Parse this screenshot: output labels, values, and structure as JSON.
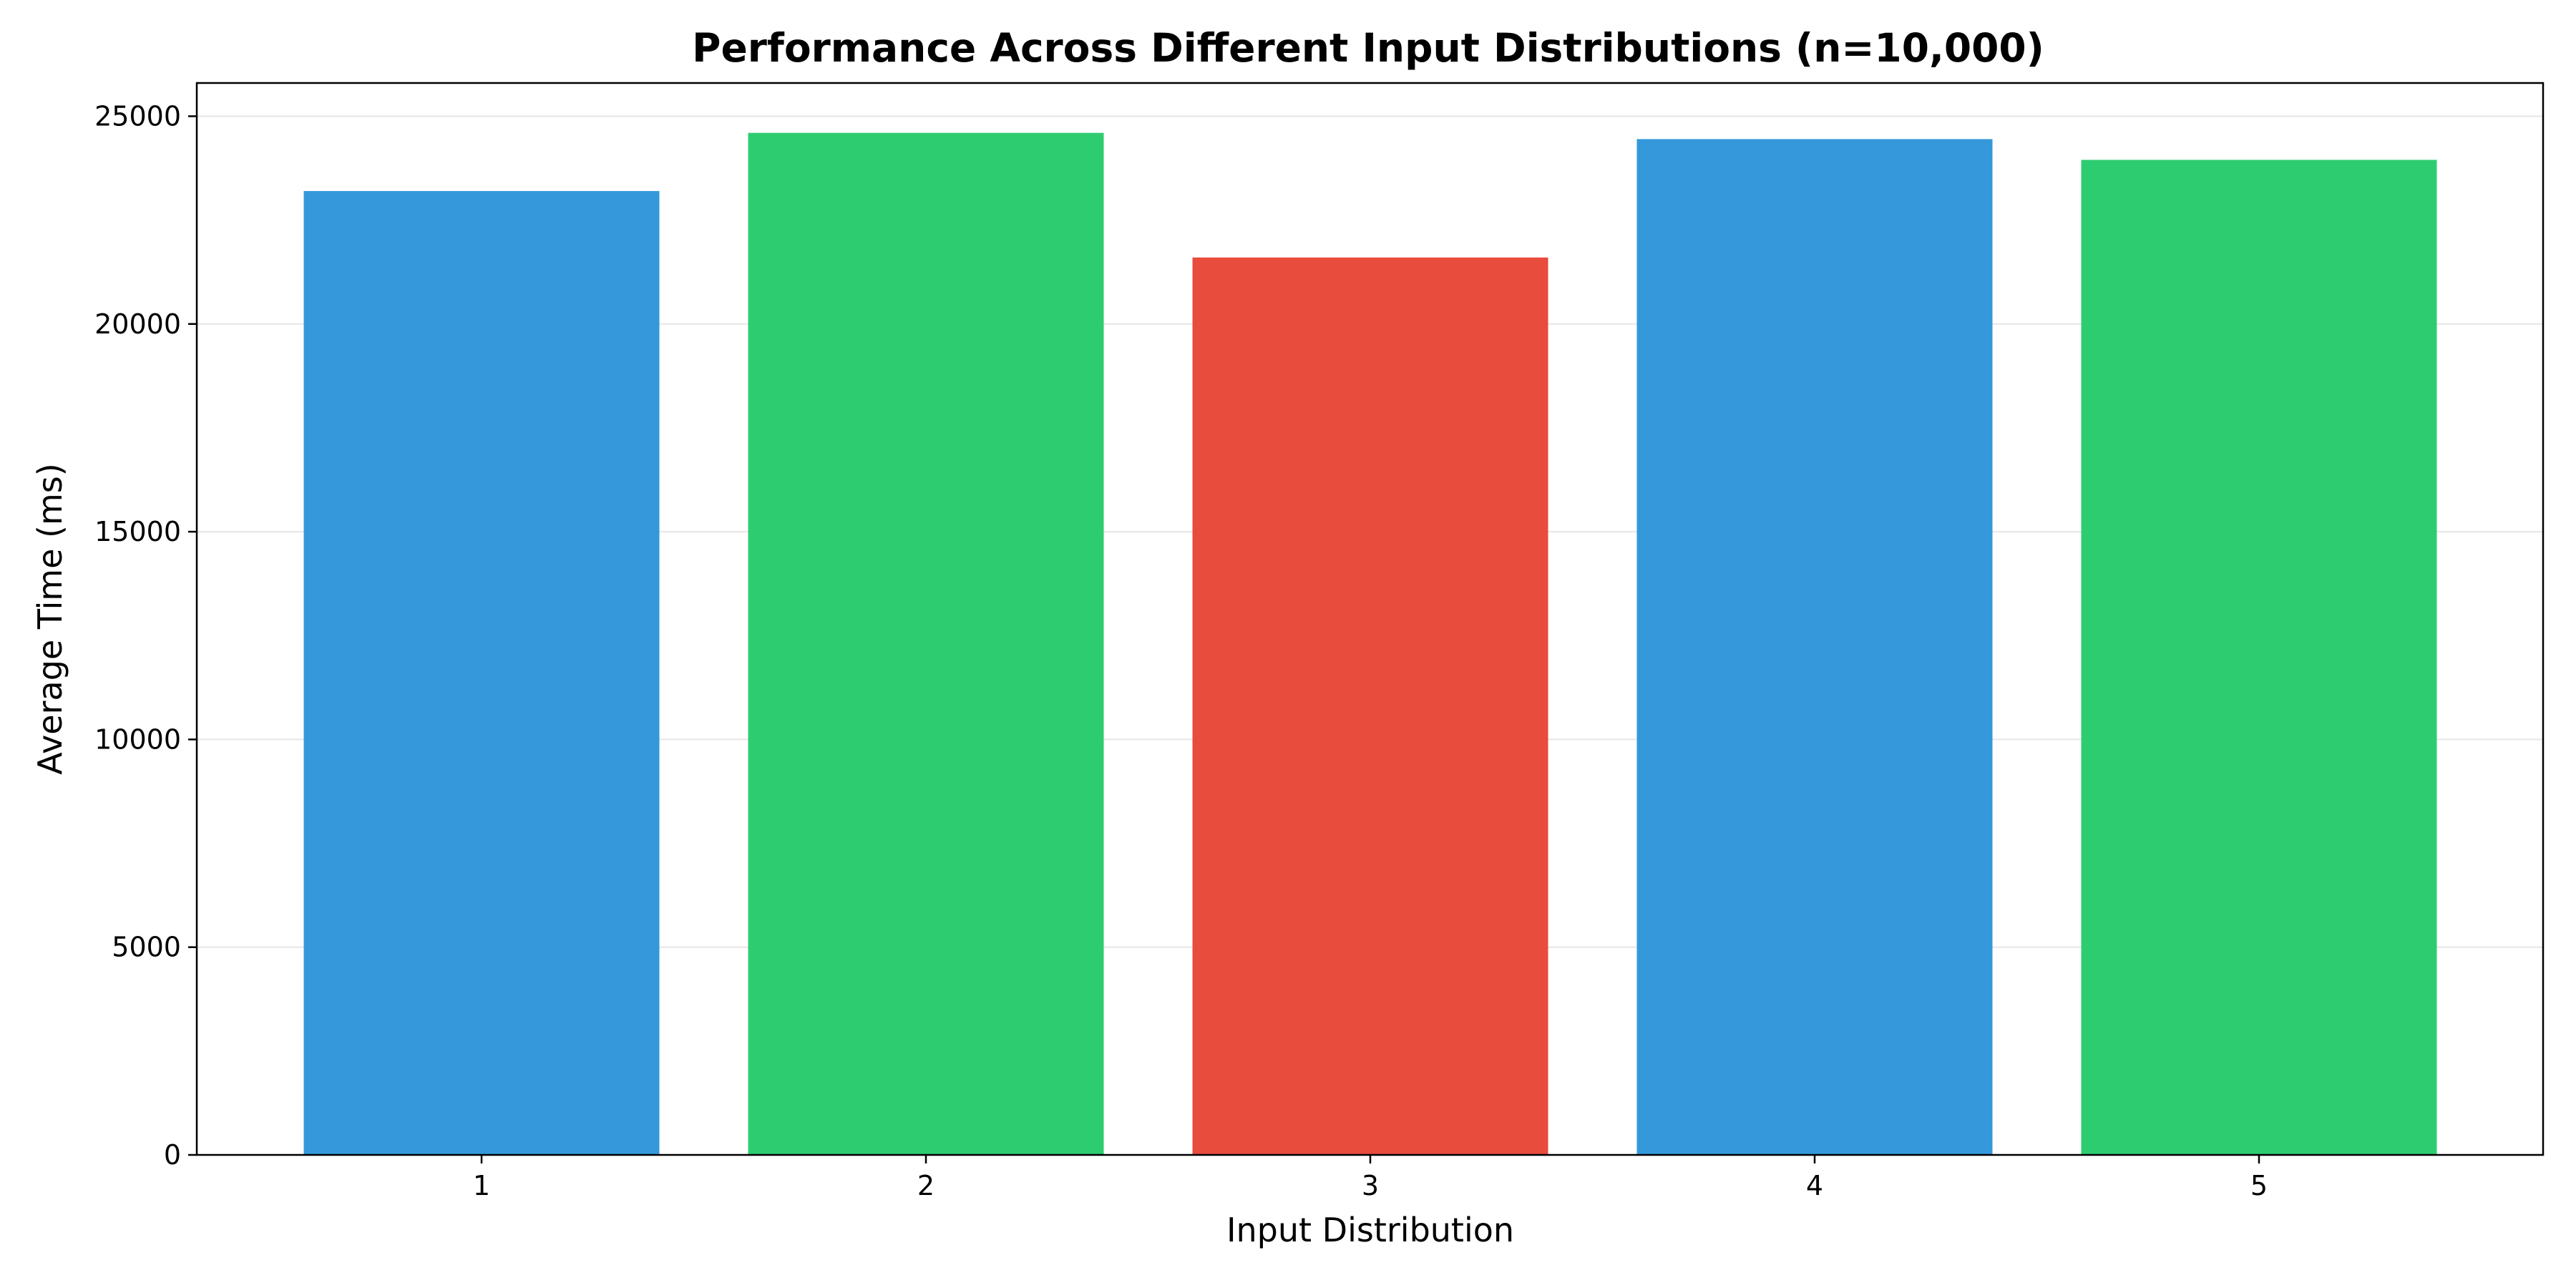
{
  "chart_data": {
    "type": "bar",
    "title": "Performance Across Different Input Distributions (n=10,000)",
    "xlabel": "Input Distribution",
    "ylabel": "Average Time (ms)",
    "categories": [
      "1",
      "2",
      "3",
      "4",
      "5"
    ],
    "values": [
      23200,
      24600,
      21600,
      24450,
      23950
    ],
    "bar_colors": [
      "#3498db",
      "#2ecc71",
      "#e74c3c",
      "#3498db",
      "#2ecc71"
    ],
    "ylim": [
      0,
      25800
    ],
    "yticks": [
      0,
      5000,
      10000,
      15000,
      20000,
      25000
    ],
    "grid": "horizontal",
    "legend": "none"
  }
}
